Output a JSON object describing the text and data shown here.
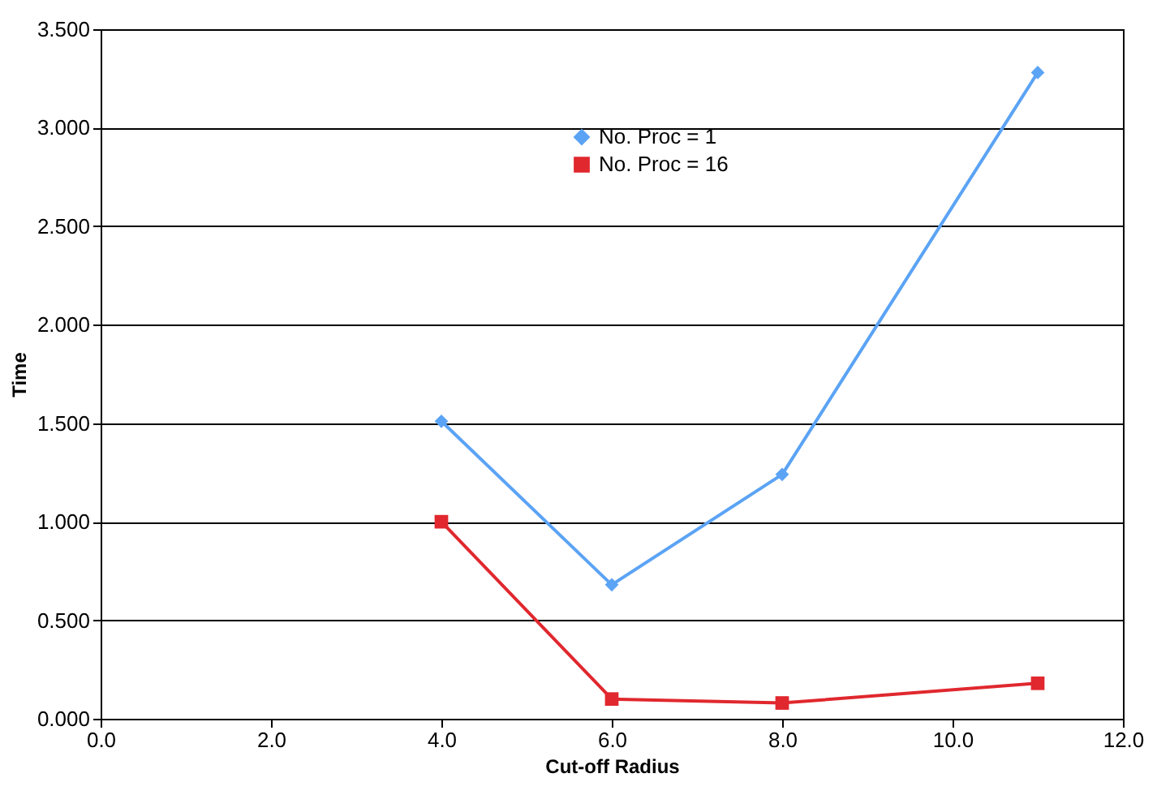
{
  "chart_data": {
    "type": "line",
    "xlabel": "Cut-off Radius",
    "ylabel": "Time",
    "x": [
      4,
      6,
      8,
      11
    ],
    "series": [
      {
        "name": "No. Proc = 1",
        "color": "#5ba3f5",
        "marker": "diamond",
        "values": [
          1.51,
          0.68,
          1.24,
          3.28
        ]
      },
      {
        "name": "No. Proc = 16",
        "color": "#e0282e",
        "marker": "square",
        "values": [
          1.0,
          0.1,
          0.08,
          0.18
        ]
      }
    ],
    "xlim": [
      0,
      12
    ],
    "xticks": [
      {
        "value": 0,
        "label": "0.0"
      },
      {
        "value": 2,
        "label": "2.0"
      },
      {
        "value": 4,
        "label": "4.0"
      },
      {
        "value": 6,
        "label": "6.0"
      },
      {
        "value": 8,
        "label": "8.0"
      },
      {
        "value": 10,
        "label": "10.0"
      },
      {
        "value": 12,
        "label": "12.0"
      }
    ],
    "ylim": [
      0,
      3.5
    ],
    "yticks": [
      {
        "value": 0,
        "label": "0.000"
      },
      {
        "value": 0.5,
        "label": "0.500"
      },
      {
        "value": 1,
        "label": "1.000"
      },
      {
        "value": 1.5,
        "label": "1.500"
      },
      {
        "value": 2,
        "label": "2.000"
      },
      {
        "value": 2.5,
        "label": "2.500"
      },
      {
        "value": 3,
        "label": "3.000"
      },
      {
        "value": 3.5,
        "label": "3.500"
      }
    ],
    "grid": "y",
    "legend": "top"
  }
}
